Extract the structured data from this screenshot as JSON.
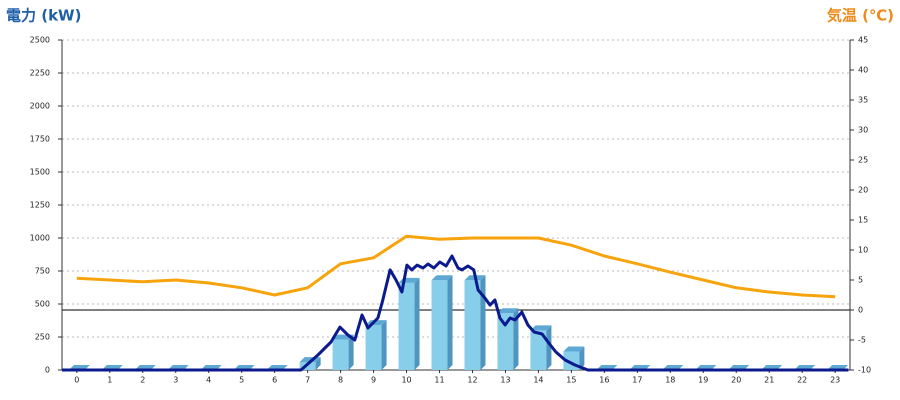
{
  "chart_data": {
    "type": "combo",
    "y_title": "電力 (kW)",
    "y2_title": "気温 (℃)",
    "xlim": [
      -0.45,
      23.45
    ],
    "xticks": [
      0,
      1,
      2,
      3,
      4,
      5,
      6,
      7,
      8,
      9,
      10,
      11,
      12,
      13,
      14,
      15,
      16,
      17,
      18,
      19,
      20,
      21,
      22,
      23
    ],
    "ylim": [
      0,
      2500
    ],
    "yticks": [
      0,
      250,
      500,
      750,
      1000,
      1250,
      1500,
      1750,
      2000,
      2250,
      2500
    ],
    "y2lim": [
      -10,
      45
    ],
    "y2ticks": [
      -10,
      -5,
      0,
      5,
      10,
      15,
      20,
      25,
      30,
      35,
      40,
      45
    ],
    "grid": true,
    "series": [
      {
        "type": "bar",
        "color": "#87ceeb",
        "values": [
          0,
          0,
          0,
          0,
          0,
          0,
          0,
          60,
          230,
          340,
          660,
          680,
          680,
          430,
          300,
          140,
          0,
          0,
          0,
          0,
          0,
          0,
          0,
          0
        ]
      },
      {
        "type": "line",
        "color": "#0b1a8c",
        "x": [
          -0.45,
          6.8,
          7.31,
          7.71,
          7.98,
          8.22,
          8.43,
          8.65,
          8.83,
          9.13,
          9.28,
          9.5,
          9.68,
          9.86,
          10.01,
          10.16,
          10.32,
          10.5,
          10.65,
          10.83,
          11.01,
          11.2,
          11.38,
          11.56,
          11.68,
          11.86,
          12.04,
          12.17,
          12.38,
          12.53,
          12.68,
          12.83,
          12.99,
          13.14,
          13.29,
          13.5,
          13.68,
          13.87,
          14.11,
          14.29,
          14.53,
          14.81,
          15.11,
          15.5,
          23.4
        ],
        "values": [
          0,
          0,
          114,
          212,
          325,
          265,
          227,
          417,
          318,
          394,
          530,
          758,
          682,
          591,
          795,
          758,
          795,
          773,
          803,
          773,
          818,
          788,
          864,
          773,
          758,
          788,
          758,
          606,
          545,
          492,
          530,
          394,
          341,
          394,
          379,
          439,
          341,
          288,
          273,
          212,
          136,
          76,
          38,
          0,
          0
        ]
      },
      {
        "type": "line",
        "axis": "y2",
        "color": "#f7a30c",
        "values": [
          5.3,
          5,
          4.7,
          5,
          4.5,
          3.7,
          2.5,
          3.7,
          7.7,
          8.7,
          12.3,
          11.8,
          12,
          12,
          12,
          10.8,
          9,
          7.7,
          6.3,
          5,
          3.7,
          3,
          2.5,
          2.2
        ]
      }
    ]
  }
}
